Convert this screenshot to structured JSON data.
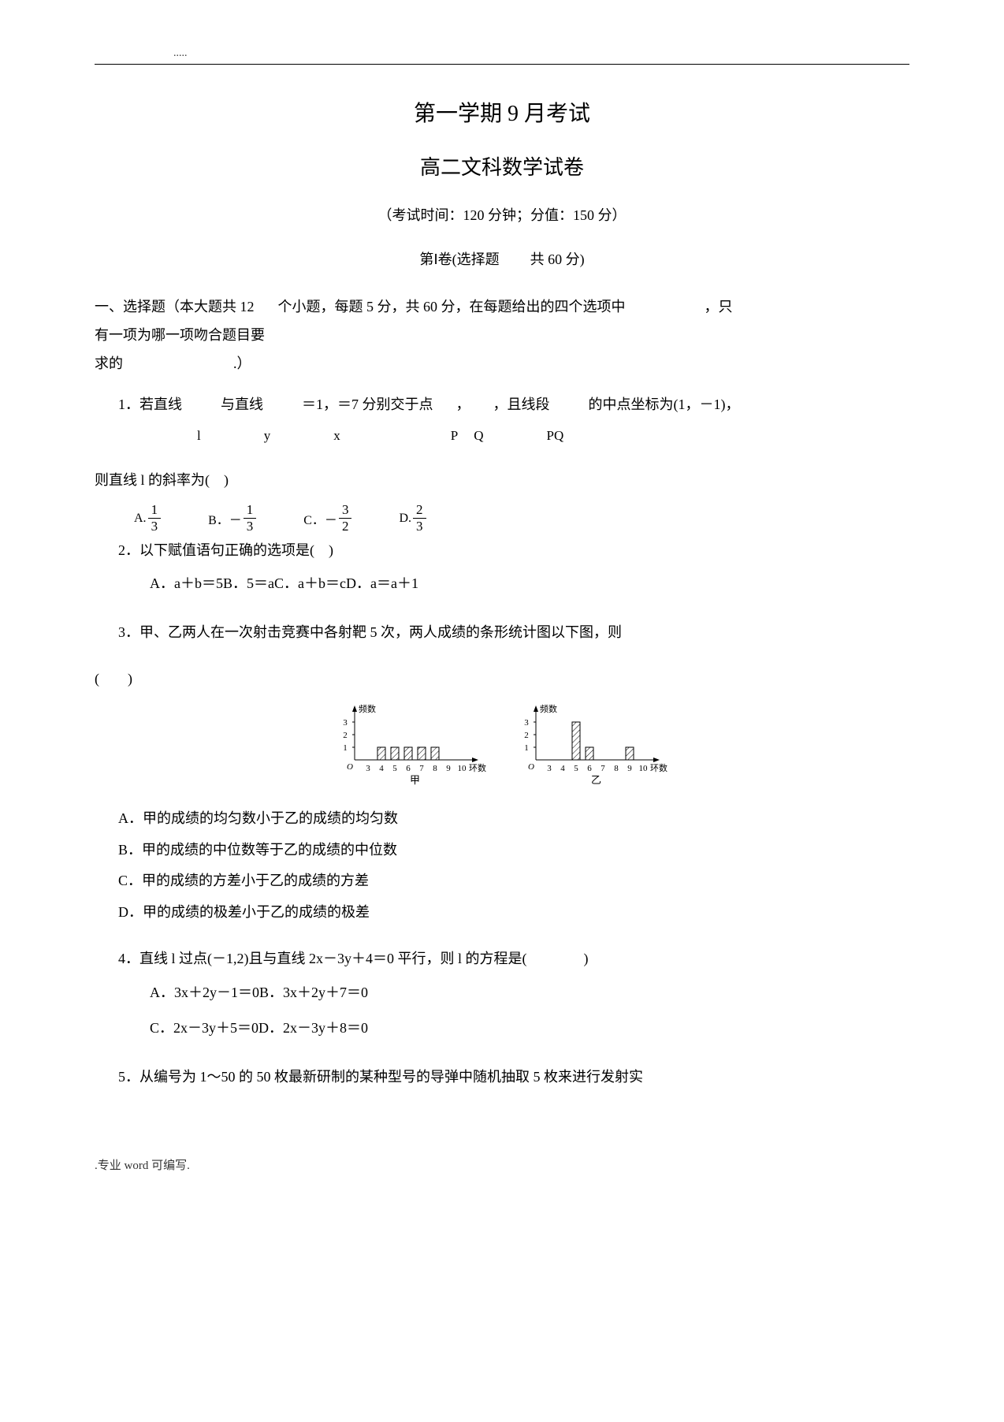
{
  "header_dots": ".....",
  "title": "第一学期 9 月考试",
  "subtitle": "高二文科数学试卷",
  "exam_info": "（考试时间：120 分钟；分值：150 分）",
  "section_header_a": "第Ⅰ卷(选择题",
  "section_header_b": "共 60 分)",
  "intro_l1_a": "一、选择题（本大题共 12",
  "intro_l1_b": "个小题，每题 5 分，共 60 分，在每题给出的四个选项中",
  "intro_l1_c": "，只",
  "intro_l2_a": "有一项为哪一项吻合题目要",
  "intro_l2_b": "求的",
  "intro_l2_c": ".）",
  "q1": {
    "r1_a": "1．若直线",
    "r1_b": "与直线",
    "r1_c": "＝1，＝7 分别交于点",
    "r1_d": "，",
    "r1_e": "，且线段",
    "r1_f": "的中点坐标为(1，－1)，",
    "r2_l": "l",
    "r2_y": "y",
    "r2_x": "x",
    "r2_P": "P",
    "r2_Q": "Q",
    "r2_PQ": "PQ",
    "r3": "则直线 l 的斜率为( )",
    "optA_label": "A.",
    "optA_num": "1",
    "optA_den": "3",
    "optB_label": "B．－",
    "optB_num": "1",
    "optB_den": "3",
    "optC_label": "C．－",
    "optC_num": "3",
    "optC_den": "2",
    "optD_label": "D.",
    "optD_num": "2",
    "optD_den": "3"
  },
  "q2": {
    "text": "2．以下赋值语句正确的选项是( )",
    "options": "A．a＋b＝5B．5＝aC．a＋b＝cD．a＝a＋1"
  },
  "q3": {
    "text": "3．甲、乙两人在一次射击竞赛中各射靶 5 次，两人成绩的条形统计图以下图，则",
    "paren": "(  )",
    "optA": "A．甲的成绩的均匀数小于乙的成绩的均匀数",
    "optB": "B．甲的成绩的中位数等于乙的成绩的中位数",
    "optC": "C．甲的成绩的方差小于乙的成绩的方差",
    "optD": "D．甲的成绩的极差小于乙的成绩的极差"
  },
  "q4": {
    "text": "4．直线 l 过点(－1,2)且与直线 2x－3y＋4＝0 平行，则 l 的方程是(    )",
    "optA": "A．3x＋2y－1＝0B．3x＋2y＋7＝0",
    "optC": "C．2x－3y＋5＝0D．2x－3y＋8＝0"
  },
  "q5": {
    "text": "5．从编号为 1～50 的 50 枚最新研制的某种型号的导弹中随机抽取 5 枚来进行发射实"
  },
  "chart": {
    "ylabel": "频数",
    "xlabel": "环数",
    "xticks": [
      "3",
      "4",
      "5",
      "6",
      "7",
      "8",
      "9",
      "10"
    ],
    "yticks": [
      "1",
      "2",
      "3"
    ],
    "label_left": "甲",
    "label_right": "乙",
    "data_left": [
      {
        "x": 4,
        "h": 1
      },
      {
        "x": 5,
        "h": 1
      },
      {
        "x": 6,
        "h": 1
      },
      {
        "x": 7,
        "h": 1
      },
      {
        "x": 8,
        "h": 1
      }
    ],
    "data_right": [
      {
        "x": 5,
        "h": 3
      },
      {
        "x": 6,
        "h": 1
      },
      {
        "x": 9,
        "h": 1
      }
    ],
    "axis_color": "#000000",
    "bar_stroke": "#000000",
    "bar_fill": "#ffffff",
    "font_size": 11
  },
  "footer": ".专业 word 可编写."
}
